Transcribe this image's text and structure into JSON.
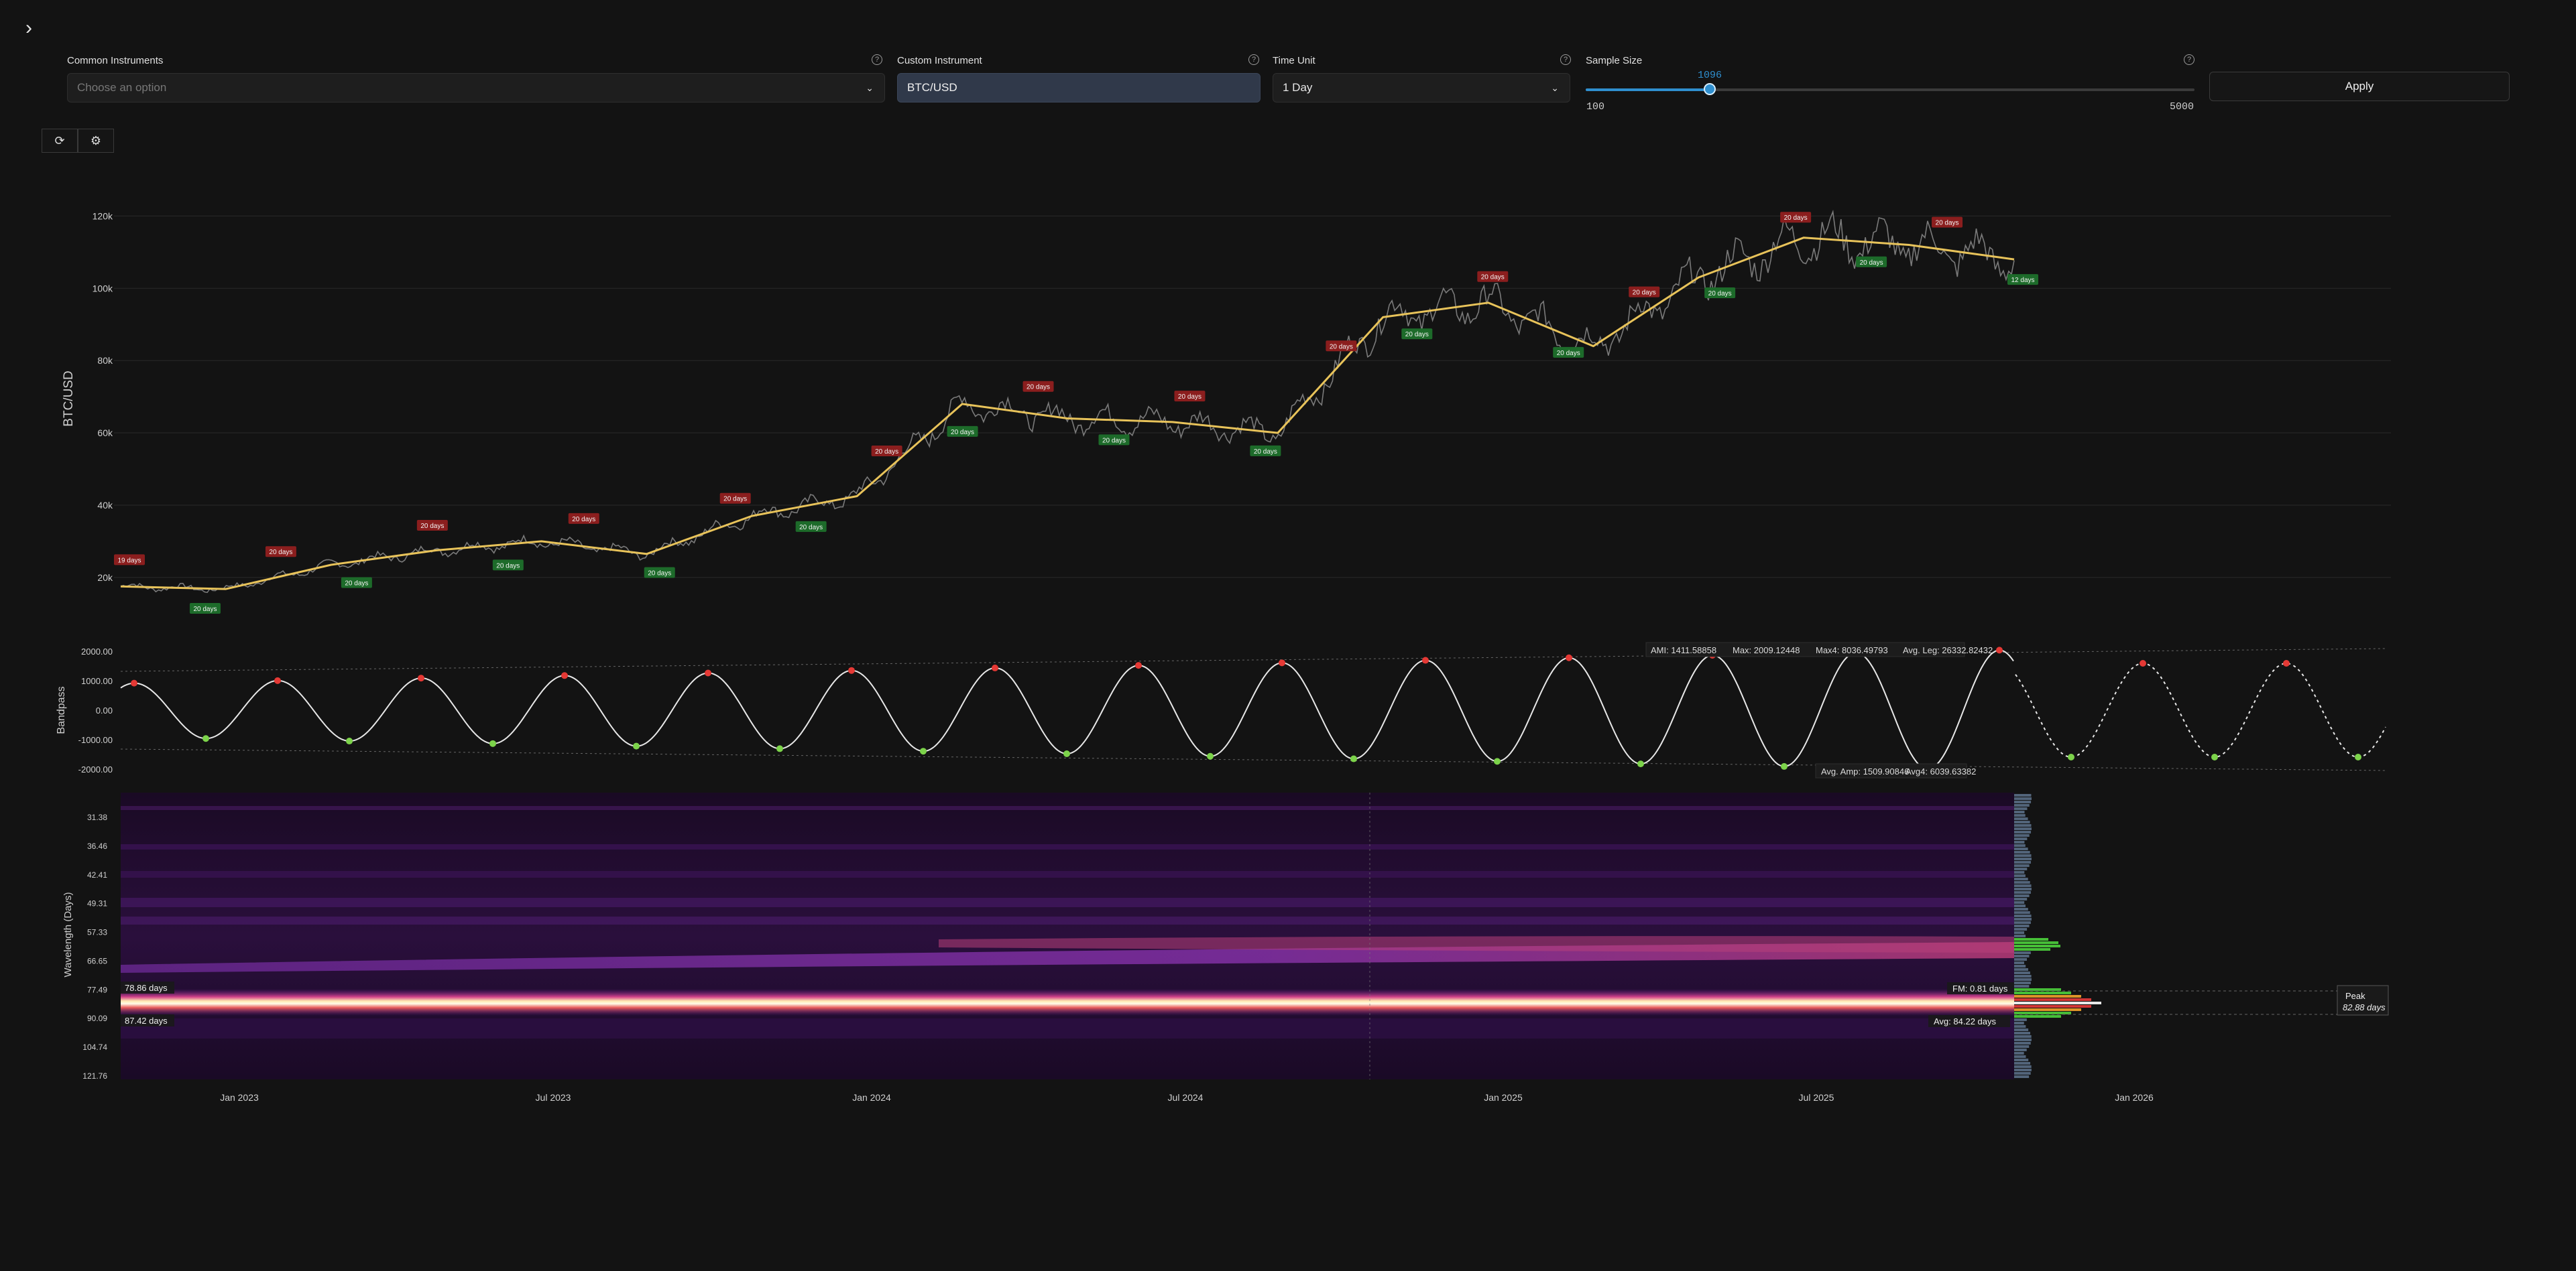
{
  "toolbar": {
    "common_instruments": {
      "label": "Common Instruments",
      "placeholder": "Choose an option"
    },
    "custom_instrument": {
      "label": "Custom Instrument",
      "value": "BTC/USD"
    },
    "time_unit": {
      "label": "Time Unit",
      "value": "1 Day"
    },
    "sample_size": {
      "label": "Sample Size",
      "value": 1096,
      "min": 100,
      "max": 5000,
      "min_label": "100",
      "max_label": "5000",
      "value_label": "1096"
    },
    "apply_label": "Apply",
    "help_glyph": "?",
    "icons": {
      "expand": "chevron-right-icon",
      "refresh": "refresh-icon",
      "settings": "gear-icon"
    }
  },
  "price_panel": {
    "ylabel": "BTC/USD",
    "y_ticks": [
      "20k",
      "40k",
      "60k",
      "80k",
      "100k",
      "120k"
    ],
    "y_tick_values": [
      20000,
      40000,
      60000,
      80000,
      100000,
      120000
    ],
    "ylim": [
      12000,
      126000
    ],
    "price_color": "#7a7a7a",
    "smooth_color": "#e8c35a",
    "peak_label_color": "#8b1e1e",
    "trough_label_color": "#1d6b2a",
    "cycle_label": "20 days",
    "cycle_label_first": "19 days",
    "cycle_label_last": "12 days"
  },
  "bandpass_panel": {
    "ylabel": "Bandpass",
    "y_ticks": [
      "2000.00",
      "1000.00",
      "0.00",
      "-1000.00",
      "-2000.00"
    ],
    "legend_top": {
      "aml": "AMI: 1411.58858",
      "max": "Max: 2009.12448",
      "max4": "Max4: 8036.49793",
      "avg_leg": "Avg. Leg: 26332.82432"
    },
    "legend_bottom": {
      "avg_amp": "Avg. Amp: 1509.90846",
      "avg4": "Avg4: 6039.63382"
    },
    "wave_color": "#e8e8e8",
    "peak_color": "#e53935",
    "trough_color": "#7cd34a"
  },
  "spectrogram_panel": {
    "ylabel": "Wavelength (Days)",
    "y_ticks": [
      "31.38",
      "36.46",
      "42.41",
      "49.31",
      "57.33",
      "66.65",
      "77.49",
      "90.09",
      "104.74",
      "121.76"
    ],
    "marker_upper": "78.86 days",
    "marker_lower": "87.42 days",
    "fm_label": "FM: 0.81 days",
    "avg_label": "Avg: 84.22 days",
    "peak_title": "Peak",
    "peak_value": "82.88 days"
  },
  "x_axis": {
    "ticks": [
      "Jan 2023",
      "Jul 2023",
      "Jan 2024",
      "Jul 2024",
      "Jan 2025",
      "Jul 2025",
      "Jan 2026"
    ]
  },
  "chart_data": {
    "type": "line",
    "title": "",
    "xlabel": "",
    "ylabel": "BTC/USD",
    "x": [
      "2022-11",
      "2023-01",
      "2023-03",
      "2023-05",
      "2023-07",
      "2023-09",
      "2023-11",
      "2024-01",
      "2024-03",
      "2024-05",
      "2024-07",
      "2024-09",
      "2024-11",
      "2025-01",
      "2025-03",
      "2025-05",
      "2025-07",
      "2025-09",
      "2025-11"
    ],
    "series": [
      {
        "values": [
          17500,
          16800,
          23500,
          27500,
          30000,
          26500,
          37000,
          42500,
          68000,
          64000,
          63000,
          60000,
          92000,
          96000,
          84000,
          103000,
          114000,
          112000,
          108000
        ]
      }
    ],
    "ylim": [
      12000,
      126000
    ]
  }
}
